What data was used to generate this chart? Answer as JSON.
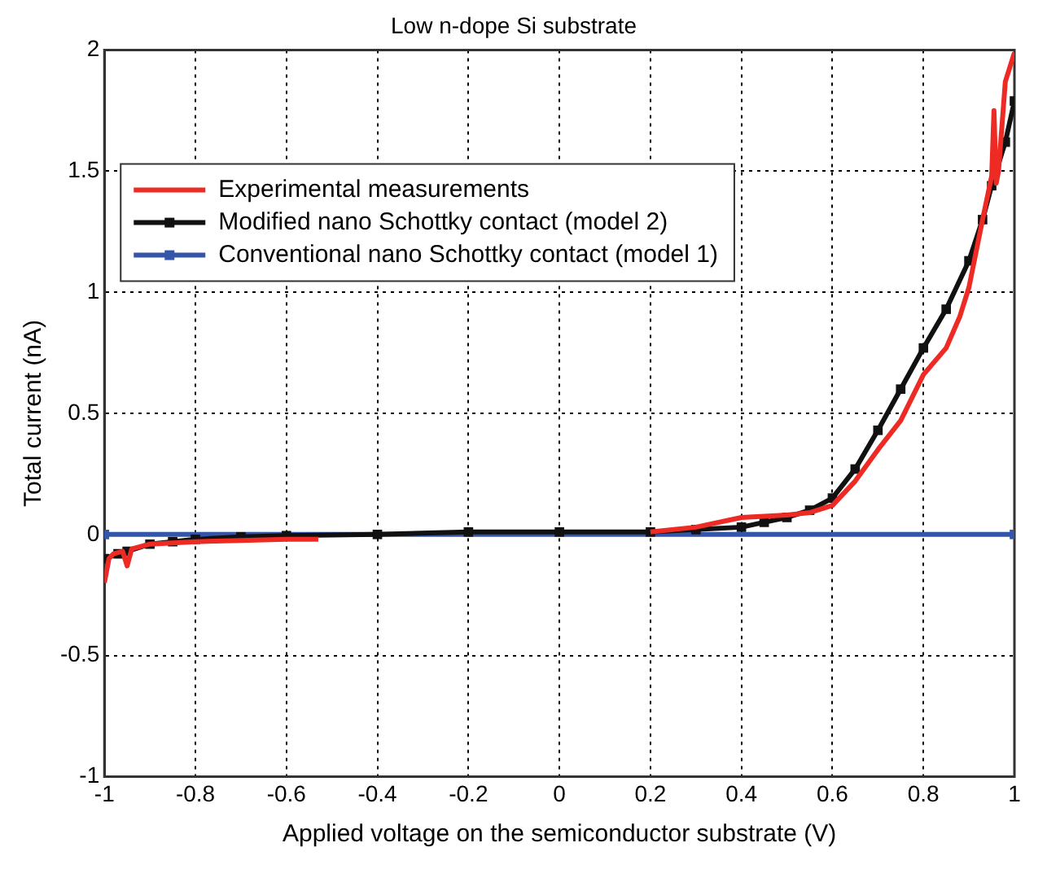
{
  "chart_data": {
    "type": "line",
    "title": "Low n-dope Si substrate",
    "xlabel": "Applied voltage on the semiconductor substrate (V)",
    "ylabel": "Total current (nA)",
    "xlim": [
      -1,
      1
    ],
    "xticks": [
      -1,
      -0.8,
      -0.6,
      -0.4,
      -0.2,
      0,
      0.2,
      0.4,
      0.6,
      0.8,
      1
    ],
    "ylim": [
      -1,
      2
    ],
    "yticks": [
      -1,
      -0.5,
      0,
      0.5,
      1,
      1.5,
      2
    ],
    "grid": true,
    "legend": "top left",
    "line_style": "solid",
    "series": [
      {
        "name": "Experimental measurements",
        "color": "#ee2a24",
        "marker": "none",
        "x": [
          -1,
          -0.99,
          -0.98,
          -0.96,
          -0.95,
          -0.94,
          -0.9,
          -0.85,
          -0.8,
          -0.7,
          -0.6,
          -0.53,
          null,
          0.2,
          0.3,
          0.4,
          0.5,
          0.55,
          0.6,
          0.65,
          0.7,
          0.75,
          0.8,
          0.85,
          0.88,
          0.9,
          0.93,
          0.95,
          0.955,
          0.96,
          0.965,
          0.98,
          1
        ],
        "values": [
          -0.2,
          -0.1,
          -0.08,
          -0.07,
          -0.13,
          -0.06,
          -0.04,
          -0.035,
          -0.03,
          -0.025,
          -0.02,
          -0.02,
          null,
          0.01,
          0.03,
          0.07,
          0.08,
          0.09,
          0.12,
          0.22,
          0.35,
          0.47,
          0.66,
          0.77,
          0.9,
          1.02,
          1.3,
          1.48,
          1.75,
          1.45,
          1.5,
          1.87,
          1.99
        ]
      },
      {
        "name": "Modified nano Schottky contact (model 2)",
        "color": "#111111",
        "marker": "square",
        "x": [
          -1,
          -0.97,
          -0.95,
          -0.9,
          -0.85,
          -0.8,
          -0.7,
          -0.6,
          -0.4,
          -0.2,
          0,
          0.2,
          0.3,
          0.4,
          0.45,
          0.5,
          0.55,
          0.6,
          0.65,
          0.7,
          0.75,
          0.8,
          0.85,
          0.9,
          0.93,
          0.95,
          0.98,
          1
        ],
        "values": [
          -0.1,
          -0.08,
          -0.07,
          -0.04,
          -0.03,
          -0.02,
          -0.01,
          -0.005,
          0,
          0.01,
          0.01,
          0.01,
          0.02,
          0.03,
          0.05,
          0.07,
          0.1,
          0.15,
          0.27,
          0.43,
          0.6,
          0.77,
          0.93,
          1.13,
          1.3,
          1.44,
          1.62,
          1.79
        ]
      },
      {
        "name": "Conventional nano Schottky contact (model 1)",
        "color": "#3355aa",
        "marker": "square",
        "x": [
          -1,
          1
        ],
        "values": [
          0,
          0
        ]
      }
    ]
  }
}
